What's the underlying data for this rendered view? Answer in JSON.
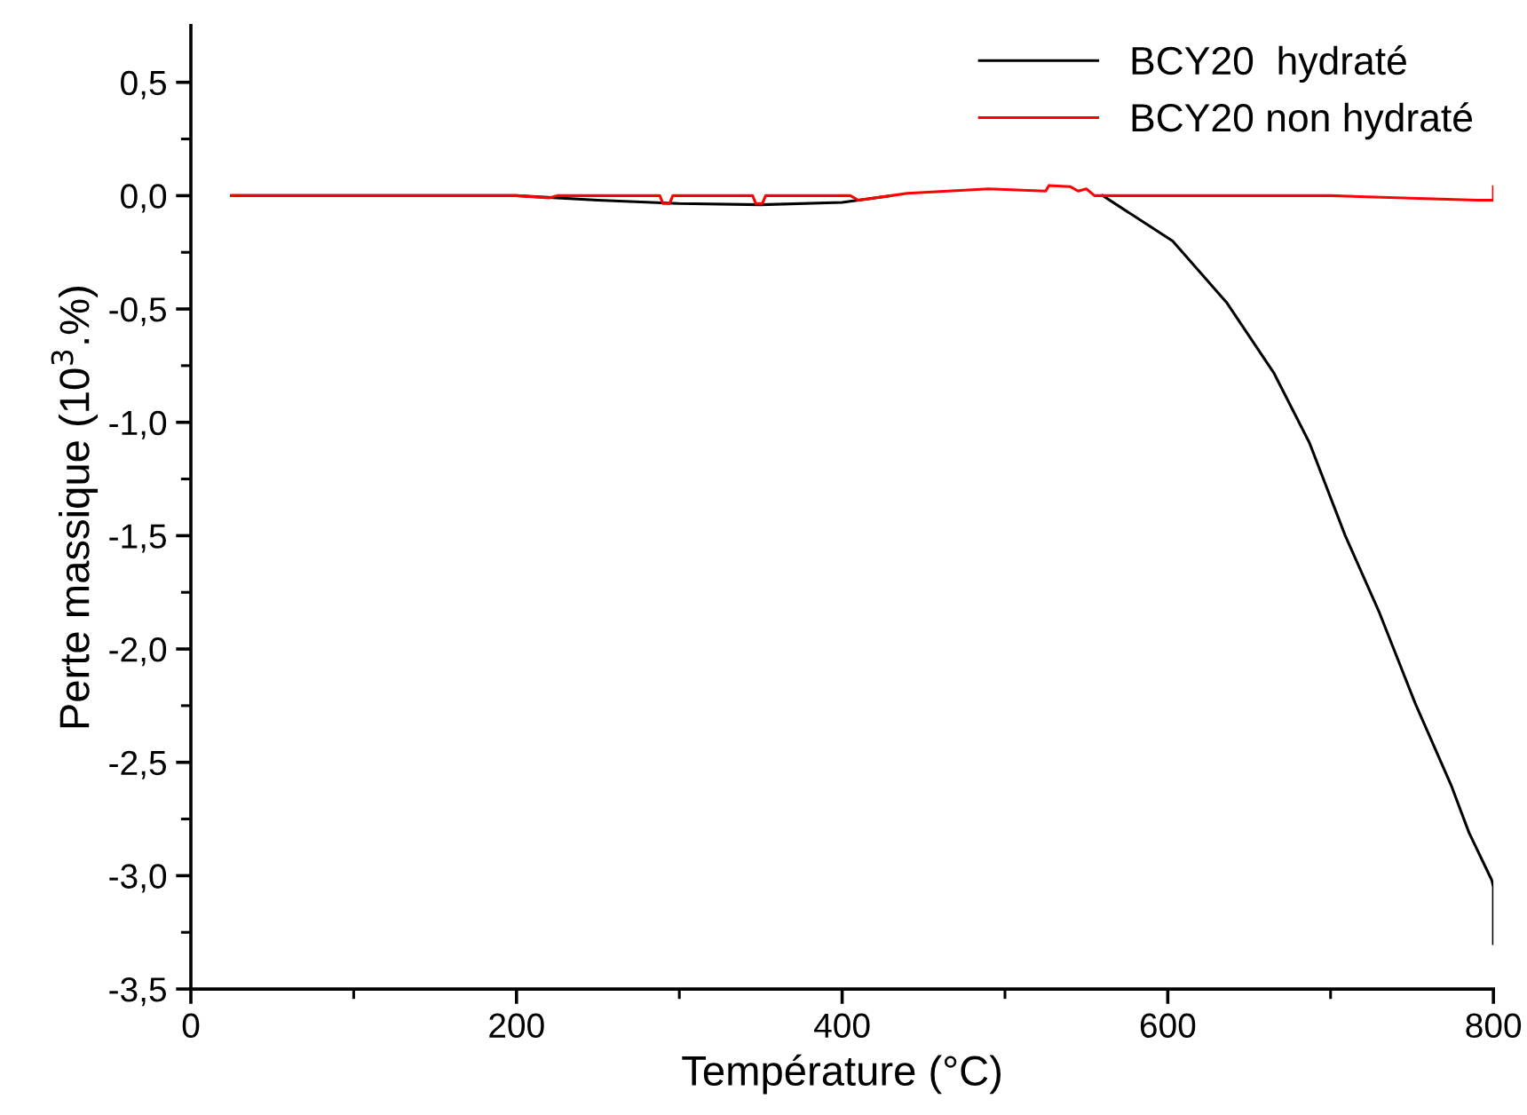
{
  "chart_data": {
    "type": "line",
    "xlabel": "Température (°C)",
    "ylabel": "Perte massique (10$^{3}$.%)",
    "xlim": [
      0,
      800
    ],
    "xticks": [
      0,
      200,
      400,
      600,
      800
    ],
    "ylim": [
      -3.5,
      0.75
    ],
    "yticks": [
      {
        "value": -3.5,
        "label": "-3,5"
      },
      {
        "value": -3.0,
        "label": "-3,0"
      },
      {
        "value": -2.5,
        "label": "-2,5"
      },
      {
        "value": -2.0,
        "label": "-2,0"
      },
      {
        "value": -1.5,
        "label": "-1,5"
      },
      {
        "value": -1.0,
        "label": "-1,0"
      },
      {
        "value": -0.5,
        "label": "-0,5"
      },
      {
        "value": 0.0,
        "label": "0,0"
      },
      {
        "value": 0.5,
        "label": "0,5"
      }
    ],
    "legend": "top right",
    "grid": false,
    "series": [
      {
        "name": "BCY20  hydraté",
        "color": "#000000",
        "x": [
          25,
          100,
          200,
          250,
          300,
          350,
          400,
          430,
          490,
          520,
          560,
          603,
          636,
          665,
          687,
          709,
          730,
          752,
          774,
          785,
          799,
          800,
          800
        ],
        "values": [
          0,
          0,
          0,
          -0.02,
          -0.035,
          -0.04,
          -0.03,
          0,
          null,
          null,
          0,
          -0.2,
          -0.47,
          -0.78,
          -1.09,
          -1.5,
          -1.84,
          -2.24,
          -2.6,
          -2.81,
          -3.02,
          -3.05,
          -3.3
        ]
      },
      {
        "name": "BCY20 non hydraté",
        "color": "#ff0000",
        "x": [
          25,
          200,
          220,
          225,
          288,
          290,
          294,
          296,
          345,
          347,
          351,
          353,
          405,
          410,
          440,
          490,
          525,
          527,
          540,
          545,
          550,
          555,
          600,
          700,
          790,
          800,
          800
        ],
        "values": [
          0,
          0,
          -0.01,
          0,
          0,
          -0.035,
          -0.035,
          0,
          0,
          -0.035,
          -0.035,
          0,
          0,
          -0.02,
          0.01,
          0.03,
          0.02,
          0.045,
          0.04,
          0.02,
          0.03,
          0,
          0,
          0,
          -0.02,
          -0.02,
          0.04
        ]
      }
    ]
  }
}
